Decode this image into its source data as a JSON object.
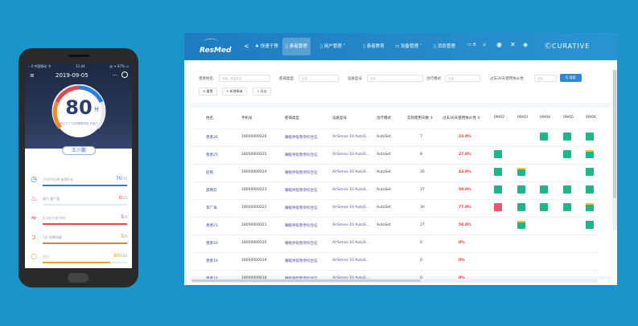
{
  "phone": {
    "status_left": "...ll 中国移动 令",
    "status_time": "11:44",
    "status_right": "@ ✦ 87% ▭",
    "menu_icon": "hamburger-icon",
    "date": "2019-09-05",
    "more": "···",
    "score": "80",
    "score_unit": "分",
    "score_note": "超过了77%的睡眠呼吸 机用户",
    "user_name": "王少鹏",
    "metrics": [
      {
        "icon": "clock-icon",
        "glyph": "◷",
        "label": "7小时0分钟 使用时长",
        "value": "70",
        "max": "/70",
        "color": "#2b7fd4",
        "progress": 1.0
      },
      {
        "icon": "mask-icon",
        "glyph": "♨",
        "label": "漏气 漏气量",
        "value": "0",
        "max": "/25",
        "color": "#e04a4a",
        "progress": 0.0
      },
      {
        "icon": "breath-icon",
        "glyph": "≈",
        "label": "4.4次/小时 AHI",
        "value": "5",
        "max": "/5",
        "color": "#e04a4a",
        "progress": 1.0
      },
      {
        "icon": "mask-fit-icon",
        "glyph": "ↄ",
        "label": "7次 面罩佩戴",
        "value": "5",
        "max": "/5",
        "color": "#f07a2a",
        "progress": 1.0
      },
      {
        "icon": "total-icon",
        "glyph": "○",
        "label": "总分",
        "value": "80",
        "max": "/100",
        "color": "#f0a020",
        "progress": 0.8
      }
    ]
  },
  "desktop": {
    "logo": "ResMed",
    "back": "<",
    "nav": [
      {
        "label": "♠ 快速干预",
        "active": false
      },
      {
        "label": "▯ 患者管理",
        "active": true
      },
      {
        "label": "▯ 用户管理 ˅",
        "active": false
      },
      {
        "label": "▯ 患者教育",
        "active": false
      },
      {
        "label": "▭ 设备管理 ˅",
        "active": false
      },
      {
        "label": "▯ 消息管理",
        "active": false
      },
      {
        "label": "▭ 8",
        "active": false
      }
    ],
    "nav_icons": [
      "search-icon",
      "user-icon",
      "tools-icon",
      "wifi-icon"
    ],
    "brand": "CURATIVE",
    "filters": {
      "name_label": "患者姓名",
      "name_placeholder": "请输入患者姓名",
      "type_label": "疾病类型",
      "type_value": "全部",
      "model_label": "设备型号",
      "model_value": "全部",
      "mode_label": "治疗模式",
      "mode_value": "全部",
      "compliance_label": "过去30天使用依从性",
      "compliance_value": "全部",
      "search_label": "Q 搜索",
      "reset_label": "⟲ 重置",
      "add_label": "+ 新增患者",
      "export_label": "⇩ 导出"
    },
    "table": {
      "headers": [
        "姓名",
        "手机号",
        "疾病类型",
        "设备型号",
        "治疗模式",
        "实际使用天数 ⇕",
        "过去30天使用依从性 ⇕",
        "09/02",
        "09/03",
        "09/04",
        "09/05",
        "09/06"
      ],
      "rows": [
        {
          "name": "患者26",
          "phone": "18000000026",
          "type": "睡眠呼吸暂停综合征",
          "model": "AirSense 10 AutoS...",
          "mode": "AutoSet",
          "days": "7",
          "pct": "23.0%",
          "marks": [
            "",
            "",
            "green",
            "green",
            "green"
          ]
        },
        {
          "name": "患者25",
          "phone": "18000000025",
          "type": "睡眠呼吸暂停综合征",
          "model": "AirSense 10 AutoS...",
          "mode": "AutoSet",
          "days": "8",
          "pct": "27.0%",
          "marks": [
            "green",
            "",
            "",
            "green",
            "greenbar"
          ]
        },
        {
          "name": "赵铭",
          "phone": "18000000024",
          "type": "睡眠呼吸暂停综合征",
          "model": "AirSense 10 AutoS...",
          "mode": "AutoSet",
          "days": "35",
          "pct": "43.0%",
          "marks": [
            "green",
            "greenbar",
            "",
            "",
            "green"
          ]
        },
        {
          "name": "邵明云",
          "phone": "18000000023",
          "type": "睡眠呼吸暂停综合征",
          "model": "AirSense 10 AutoS...",
          "mode": "AutoSet",
          "days": "37",
          "pct": "50.0%",
          "marks": [
            "green",
            "green",
            "green",
            "green",
            "green"
          ]
        },
        {
          "name": "李广海",
          "phone": "18000000022",
          "type": "睡眠呼吸暂停综合征",
          "model": "AirSense 10 AutoS...",
          "mode": "AutoSet",
          "days": "30",
          "pct": "77.0%",
          "marks": [
            "red",
            "green",
            "green",
            "green",
            "greenbar"
          ]
        },
        {
          "name": "患者21",
          "phone": "18000000021",
          "type": "睡眠呼吸暂停综合征",
          "model": "AirSense 10 AutoS...",
          "mode": "AutoSet",
          "days": "27",
          "pct": "50.0%",
          "marks": [
            "",
            "greenbar",
            "",
            "",
            "green"
          ]
        },
        {
          "name": "患者20",
          "phone": "18000000020",
          "type": "睡眠呼吸暂停综合征",
          "model": "AirSense 10 AutoS...",
          "mode": "",
          "days": "0",
          "pct": "0%",
          "marks": [
            "",
            "",
            "",
            "",
            ""
          ]
        },
        {
          "name": "患者19",
          "phone": "18000000019",
          "type": "睡眠呼吸暂停综合征",
          "model": "AirSense 10 AutoS...",
          "mode": "",
          "days": "0",
          "pct": "0%",
          "marks": [
            "",
            "",
            "",
            "",
            ""
          ]
        },
        {
          "name": "患者18",
          "phone": "18000000018",
          "type": "睡眠呼吸暂停综合征",
          "model": "AirSense 10 AutoS...",
          "mode": "",
          "days": "0",
          "pct": "0%",
          "marks": [
            "",
            "",
            "",
            "",
            ""
          ]
        }
      ]
    }
  }
}
